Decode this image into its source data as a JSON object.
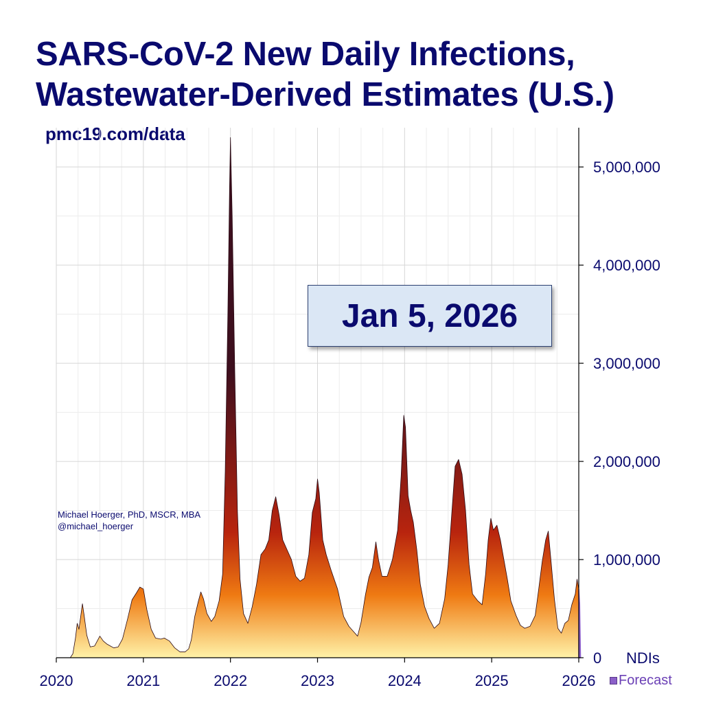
{
  "header": {
    "title_line1": "SARS-CoV-2 New Daily Infections,",
    "title_line2": "Wastewater-Derived Estimates (U.S.)",
    "source": "pmc19.com/data"
  },
  "credit": {
    "author": "Michael Hoerger, PhD, MSCR, MBA",
    "handle": "@michael_hoerger"
  },
  "date_label": "Jan 5, 2026",
  "legend": {
    "forecast_label": "Forecast"
  },
  "colors": {
    "title": "#0a0a6e",
    "gradient_top": "#3d0f1e",
    "gradient_mid": "#b8240e",
    "gradient_low": "#ef7a12",
    "gradient_base": "#fff2a8",
    "forecast": "#8b5fc8"
  },
  "chart_data": {
    "type": "area",
    "title": "SARS-CoV-2 New Daily Infections, Wastewater-Derived Estimates (U.S.)",
    "ylabel": "NDIs",
    "xlabel": "",
    "xlim": [
      2020,
      2026
    ],
    "ylim": [
      0,
      5400000
    ],
    "x_ticks": [
      2020,
      2021,
      2022,
      2023,
      2024,
      2025,
      2026
    ],
    "x_tick_labels": [
      "2020",
      "2021",
      "2022",
      "2023",
      "2024",
      "2025",
      "2026"
    ],
    "y_ticks": [
      0,
      1000000,
      2000000,
      3000000,
      4000000,
      5000000
    ],
    "y_tick_labels": [
      "0",
      "1,000,000",
      "2,000,000",
      "3,000,000",
      "4,000,000",
      "5,000,000"
    ],
    "grid": true,
    "series": [
      {
        "name": "New Daily Infections",
        "points": [
          [
            2020.16,
            0
          ],
          [
            2020.19,
            40000
          ],
          [
            2020.22,
            200000
          ],
          [
            2020.24,
            350000
          ],
          [
            2020.26,
            290000
          ],
          [
            2020.28,
            420000
          ],
          [
            2020.3,
            550000
          ],
          [
            2020.32,
            430000
          ],
          [
            2020.35,
            230000
          ],
          [
            2020.39,
            110000
          ],
          [
            2020.44,
            120000
          ],
          [
            2020.5,
            220000
          ],
          [
            2020.54,
            170000
          ],
          [
            2020.58,
            140000
          ],
          [
            2020.62,
            120000
          ],
          [
            2020.66,
            100000
          ],
          [
            2020.71,
            110000
          ],
          [
            2020.76,
            190000
          ],
          [
            2020.82,
            400000
          ],
          [
            2020.87,
            590000
          ],
          [
            2020.92,
            660000
          ],
          [
            2020.96,
            720000
          ],
          [
            2021.0,
            700000
          ],
          [
            2021.04,
            490000
          ],
          [
            2021.09,
            290000
          ],
          [
            2021.14,
            200000
          ],
          [
            2021.2,
            190000
          ],
          [
            2021.24,
            200000
          ],
          [
            2021.3,
            170000
          ],
          [
            2021.36,
            100000
          ],
          [
            2021.42,
            60000
          ],
          [
            2021.48,
            60000
          ],
          [
            2021.52,
            90000
          ],
          [
            2021.55,
            180000
          ],
          [
            2021.59,
            420000
          ],
          [
            2021.63,
            570000
          ],
          [
            2021.66,
            670000
          ],
          [
            2021.69,
            600000
          ],
          [
            2021.73,
            450000
          ],
          [
            2021.78,
            370000
          ],
          [
            2021.82,
            420000
          ],
          [
            2021.87,
            580000
          ],
          [
            2021.91,
            850000
          ],
          [
            2021.94,
            1900000
          ],
          [
            2021.97,
            3500000
          ],
          [
            2021.99,
            4800000
          ],
          [
            2022.0,
            5300000
          ],
          [
            2022.02,
            4500000
          ],
          [
            2022.05,
            2900000
          ],
          [
            2022.08,
            1500000
          ],
          [
            2022.11,
            800000
          ],
          [
            2022.15,
            450000
          ],
          [
            2022.2,
            350000
          ],
          [
            2022.25,
            520000
          ],
          [
            2022.3,
            750000
          ],
          [
            2022.35,
            1050000
          ],
          [
            2022.4,
            1110000
          ],
          [
            2022.44,
            1200000
          ],
          [
            2022.48,
            1500000
          ],
          [
            2022.52,
            1640000
          ],
          [
            2022.56,
            1450000
          ],
          [
            2022.6,
            1200000
          ],
          [
            2022.65,
            1100000
          ],
          [
            2022.7,
            1000000
          ],
          [
            2022.75,
            830000
          ],
          [
            2022.8,
            780000
          ],
          [
            2022.85,
            810000
          ],
          [
            2022.9,
            1050000
          ],
          [
            2022.94,
            1480000
          ],
          [
            2022.98,
            1620000
          ],
          [
            2023.0,
            1820000
          ],
          [
            2023.02,
            1680000
          ],
          [
            2023.06,
            1200000
          ],
          [
            2023.1,
            1050000
          ],
          [
            2023.16,
            880000
          ],
          [
            2023.23,
            700000
          ],
          [
            2023.3,
            420000
          ],
          [
            2023.36,
            320000
          ],
          [
            2023.42,
            260000
          ],
          [
            2023.46,
            220000
          ],
          [
            2023.5,
            360000
          ],
          [
            2023.55,
            640000
          ],
          [
            2023.59,
            820000
          ],
          [
            2023.63,
            920000
          ],
          [
            2023.67,
            1180000
          ],
          [
            2023.7,
            1000000
          ],
          [
            2023.74,
            830000
          ],
          [
            2023.8,
            830000
          ],
          [
            2023.86,
            1000000
          ],
          [
            2023.92,
            1300000
          ],
          [
            2023.96,
            1850000
          ],
          [
            2023.99,
            2470000
          ],
          [
            2024.01,
            2350000
          ],
          [
            2024.04,
            1650000
          ],
          [
            2024.07,
            1500000
          ],
          [
            2024.1,
            1380000
          ],
          [
            2024.14,
            1100000
          ],
          [
            2024.18,
            750000
          ],
          [
            2024.23,
            520000
          ],
          [
            2024.28,
            400000
          ],
          [
            2024.34,
            300000
          ],
          [
            2024.4,
            350000
          ],
          [
            2024.46,
            600000
          ],
          [
            2024.5,
            950000
          ],
          [
            2024.54,
            1450000
          ],
          [
            2024.58,
            1950000
          ],
          [
            2024.62,
            2020000
          ],
          [
            2024.66,
            1870000
          ],
          [
            2024.7,
            1500000
          ],
          [
            2024.74,
            950000
          ],
          [
            2024.78,
            650000
          ],
          [
            2024.84,
            580000
          ],
          [
            2024.89,
            540000
          ],
          [
            2024.93,
            850000
          ],
          [
            2024.96,
            1200000
          ],
          [
            2024.99,
            1420000
          ],
          [
            2025.02,
            1300000
          ],
          [
            2025.06,
            1350000
          ],
          [
            2025.1,
            1200000
          ],
          [
            2025.14,
            1000000
          ],
          [
            2025.18,
            800000
          ],
          [
            2025.22,
            580000
          ],
          [
            2025.28,
            430000
          ],
          [
            2025.33,
            330000
          ],
          [
            2025.38,
            300000
          ],
          [
            2025.44,
            320000
          ],
          [
            2025.5,
            430000
          ],
          [
            2025.54,
            700000
          ],
          [
            2025.58,
            980000
          ],
          [
            2025.62,
            1200000
          ],
          [
            2025.65,
            1290000
          ],
          [
            2025.68,
            1000000
          ],
          [
            2025.72,
            600000
          ],
          [
            2025.76,
            300000
          ],
          [
            2025.8,
            250000
          ],
          [
            2025.84,
            350000
          ],
          [
            2025.88,
            380000
          ],
          [
            2025.92,
            540000
          ],
          [
            2025.96,
            650000
          ],
          [
            2025.98,
            800000
          ],
          [
            2026.0,
            700000
          ],
          [
            2026.01,
            550000
          ]
        ]
      },
      {
        "name": "Forecast",
        "points": [
          [
            2026.0,
            700000
          ],
          [
            2026.01,
            550000
          ],
          [
            2026.02,
            0
          ]
        ]
      }
    ]
  }
}
